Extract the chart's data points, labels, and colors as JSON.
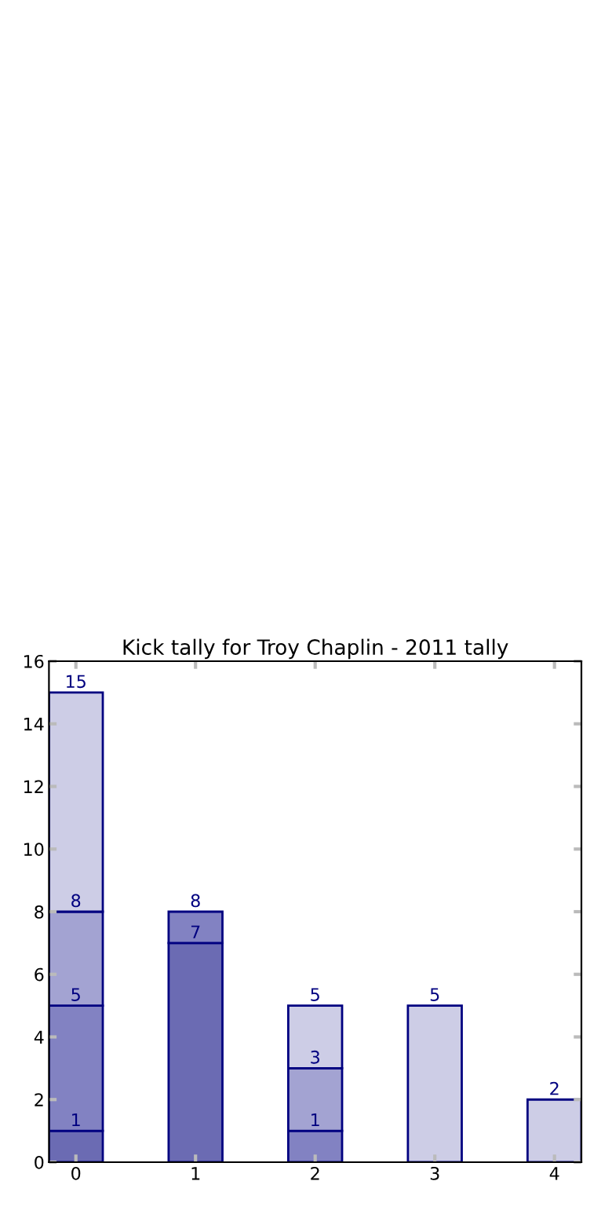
{
  "chart_data": {
    "type": "bar",
    "title": "Kick tally for Troy Chaplin - 2011 tally",
    "categories": [
      "0",
      "1",
      "2",
      "3",
      "4"
    ],
    "stacked": true,
    "ylim": [
      0,
      16
    ],
    "yticks": [
      0,
      2,
      4,
      6,
      8,
      10,
      12,
      14,
      16
    ],
    "grid": false,
    "legend": false,
    "series": [
      {
        "color": "#6b6bb3",
        "values": [
          1,
          7,
          null,
          null,
          null
        ]
      },
      {
        "color": "#8282c2",
        "values": [
          4,
          1,
          1,
          null,
          null
        ]
      },
      {
        "color": "#a3a3d2",
        "values": [
          3,
          null,
          2,
          null,
          null
        ]
      },
      {
        "color": "#cdcde6",
        "values": [
          7,
          null,
          2,
          5,
          2
        ]
      }
    ],
    "annotations": [
      {
        "text": "1",
        "x": "0",
        "y": 1
      },
      {
        "text": "5",
        "x": "0",
        "y": 5
      },
      {
        "text": "8",
        "x": "0",
        "y": 8
      },
      {
        "text": "15",
        "x": "0",
        "y": 15
      },
      {
        "text": "7",
        "x": "1",
        "y": 7
      },
      {
        "text": "8",
        "x": "1",
        "y": 8
      },
      {
        "text": "1",
        "x": "2",
        "y": 1
      },
      {
        "text": "3",
        "x": "2",
        "y": 3
      },
      {
        "text": "5",
        "x": "2",
        "y": 5
      },
      {
        "text": "5",
        "x": "3",
        "y": 5
      },
      {
        "text": "2",
        "x": "4",
        "y": 2
      }
    ]
  }
}
